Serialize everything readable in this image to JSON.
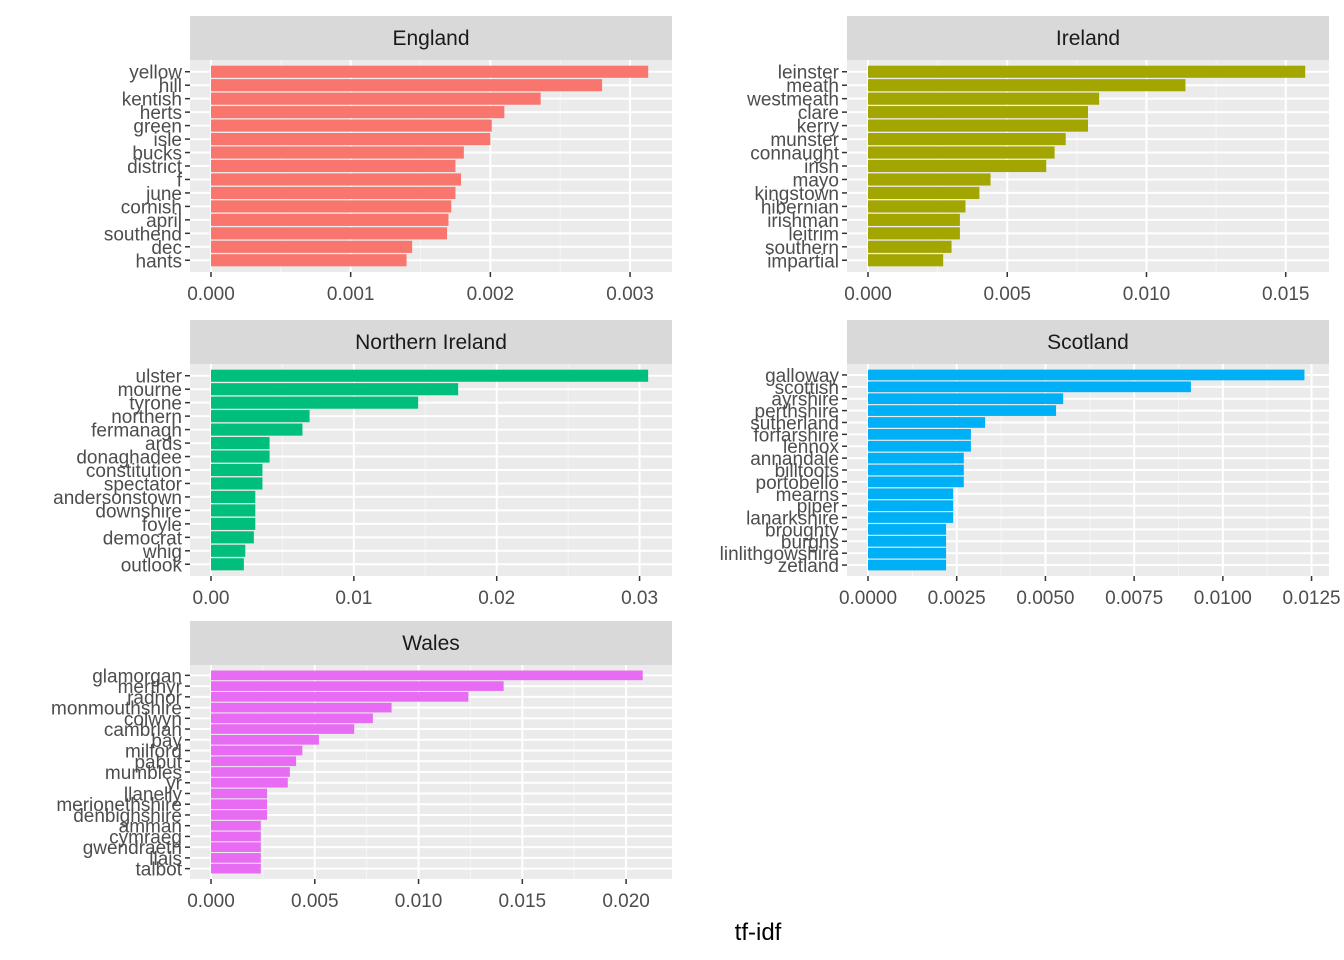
{
  "chart_data": {
    "type": "bar",
    "orientation": "horizontal",
    "xlabel": "tf-idf",
    "ylabel": "",
    "grid": true,
    "facets": [
      {
        "name": "England",
        "color": "#F8766D",
        "xlim": [
          0,
          0.00315
        ],
        "ticks": [
          0,
          0.001,
          0.002,
          0.003
        ],
        "tick_labels": [
          "0.000",
          "0.001",
          "0.002",
          "0.003"
        ],
        "categories": [
          "yellow",
          "hill",
          "kentish",
          "herts",
          "green",
          "isle",
          "bucks",
          "district",
          "f",
          "june",
          "cornish",
          "april",
          "southend",
          "dec",
          "hants"
        ],
        "values": [
          0.00313,
          0.0028,
          0.00236,
          0.0021,
          0.00201,
          0.002,
          0.00181,
          0.00175,
          0.00179,
          0.00175,
          0.00172,
          0.0017,
          0.00169,
          0.00144,
          0.0014
        ]
      },
      {
        "name": "Ireland",
        "color": "#A3A500",
        "xlim": [
          0,
          0.0158
        ],
        "ticks": [
          0,
          0.005,
          0.01,
          0.015
        ],
        "tick_labels": [
          "0.000",
          "0.005",
          "0.010",
          "0.015"
        ],
        "categories": [
          "leinster",
          "meath",
          "westmeath",
          "clare",
          "kerry",
          "munster",
          "connaught",
          "irish",
          "mayo",
          "kingstown",
          "hibernian",
          "irishman",
          "leitrim",
          "southern",
          "impartial"
        ],
        "values": [
          0.0157,
          0.0114,
          0.0083,
          0.0079,
          0.0079,
          0.0071,
          0.0067,
          0.0064,
          0.0044,
          0.004,
          0.0035,
          0.0033,
          0.0033,
          0.003,
          0.0027
        ]
      },
      {
        "name": "Northern Ireland",
        "color": "#00BF7D",
        "xlim": [
          0,
          0.0308
        ],
        "ticks": [
          0,
          0.01,
          0.02,
          0.03
        ],
        "tick_labels": [
          "0.00",
          "0.01",
          "0.02",
          "0.03"
        ],
        "categories": [
          "ulster",
          "mourne",
          "tyrone",
          "northern",
          "fermanagh",
          "ards",
          "donaghadee",
          "constitution",
          "spectator",
          "andersonstown",
          "downshire",
          "foyle",
          "democrat",
          "whig",
          "outlook"
        ],
        "values": [
          0.0306,
          0.0173,
          0.0145,
          0.0069,
          0.0064,
          0.0041,
          0.0041,
          0.0036,
          0.0036,
          0.0031,
          0.0031,
          0.0031,
          0.003,
          0.0024,
          0.0023
        ]
      },
      {
        "name": "Scotland",
        "color": "#00B0F6",
        "xlim": [
          0,
          0.0124
        ],
        "ticks": [
          0,
          0.0025,
          0.005,
          0.0075,
          0.01,
          0.0125
        ],
        "tick_labels": [
          "0.0000",
          "0.0025",
          "0.0050",
          "0.0075",
          "0.0100",
          "0.0125"
        ],
        "categories": [
          "galloway",
          "scottish",
          "ayrshire",
          "perthshire",
          "sutherland",
          "forfarshire",
          "lennox",
          "annandale",
          "billtoots",
          "portobello",
          "mearns",
          "piper",
          "lanarkshire",
          "broughty",
          "burghs",
          "linlithgowshire",
          "zetland"
        ],
        "values": [
          0.0123,
          0.0091,
          0.0055,
          0.0053,
          0.0033,
          0.0029,
          0.0029,
          0.0027,
          0.0027,
          0.0027,
          0.0024,
          0.0024,
          0.0024,
          0.0022,
          0.0022,
          0.0022,
          0.0022
        ]
      },
      {
        "name": "Wales",
        "color": "#E76BF3",
        "xlim": [
          0,
          0.0212
        ],
        "ticks": [
          0,
          0.005,
          0.01,
          0.015,
          0.02
        ],
        "tick_labels": [
          "0.000",
          "0.005",
          "0.010",
          "0.015",
          "0.020"
        ],
        "categories": [
          "glamorgan",
          "merthyr",
          "radnor",
          "monmouthshire",
          "colwyn",
          "cambrian",
          "bay",
          "milford",
          "pabut",
          "mumbles",
          "yr",
          "llanelly",
          "merionethshire",
          "denbighshire",
          "amman",
          "cymraeg",
          "gwendraeth",
          "llais",
          "talbot"
        ],
        "values": [
          0.0208,
          0.0141,
          0.0124,
          0.0087,
          0.0078,
          0.0069,
          0.0052,
          0.0044,
          0.0041,
          0.0038,
          0.0037,
          0.0027,
          0.0027,
          0.0027,
          0.0024,
          0.0024,
          0.0024,
          0.0024,
          0.0024
        ]
      }
    ]
  }
}
